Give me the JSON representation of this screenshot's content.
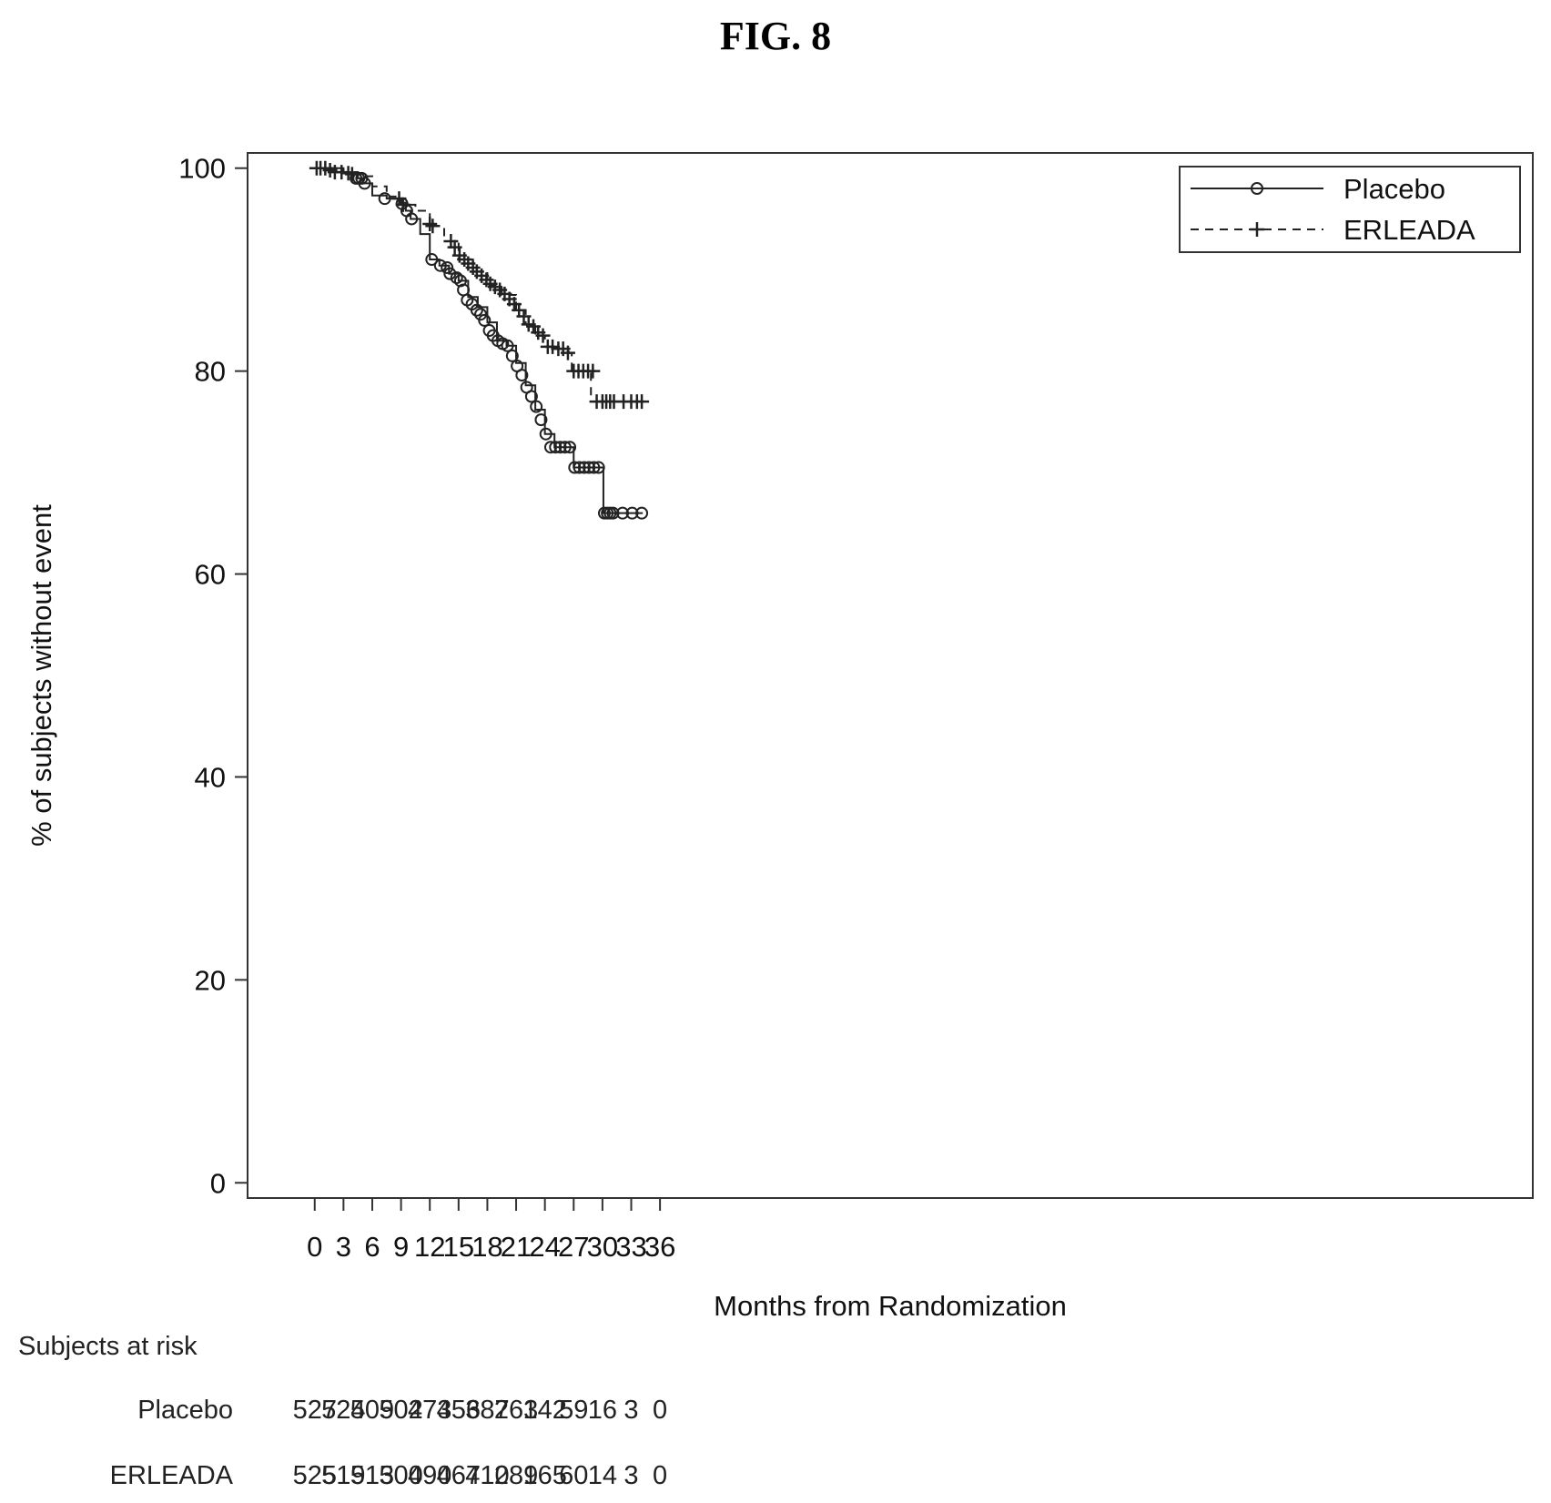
{
  "figure_title": "FIG. 8",
  "chart_data": {
    "type": "line",
    "title": "",
    "xlabel": "Months from Randomization",
    "ylabel": "% of subjects without event",
    "xlim": [
      -7,
      127
    ],
    "ylim": [
      -1.5,
      101.5
    ],
    "xticks": [
      0,
      3,
      6,
      9,
      12,
      15,
      18,
      21,
      24,
      27,
      30,
      33,
      36
    ],
    "yticks": [
      0,
      20,
      40,
      60,
      80,
      100
    ],
    "grid": false,
    "legend_position": "top-right",
    "series": [
      {
        "name": "Placebo",
        "line_style": "solid",
        "marker": "circle",
        "x": [
          0,
          3,
          4.5,
          5,
          6,
          7.5,
          9,
          9.5,
          10,
          11,
          12,
          13,
          14,
          15,
          16,
          17,
          18,
          19,
          20,
          21,
          22,
          23,
          24,
          25,
          26,
          26.7,
          27,
          28,
          29,
          29.8,
          30.1,
          31,
          32,
          33,
          34.2
        ],
        "y": [
          100,
          99.6,
          99,
          98.5,
          97.3,
          97,
          96.6,
          95.8,
          95,
          93.5,
          91,
          90.4,
          89.6,
          88.9,
          87.3,
          86.3,
          84.8,
          83,
          82.5,
          80.8,
          78.6,
          76.2,
          73.8,
          72.5,
          72.5,
          72.5,
          70.5,
          70.5,
          70.5,
          70.5,
          66,
          66,
          66,
          66,
          66
        ],
        "censor_x": [
          4.3,
          4.6,
          4.9,
          5.2,
          7.3,
          9.1,
          9.6,
          10.1,
          12.2,
          13.1,
          13.8,
          14.1,
          14.8,
          15.2,
          15.5,
          15.9,
          16.4,
          16.9,
          17.3,
          17.7,
          18.2,
          18.6,
          19.1,
          19.6,
          20.1,
          20.6,
          21.1,
          21.6,
          22.1,
          22.6,
          23.1,
          23.6,
          24.1,
          24.6,
          25.1,
          25.6,
          26.1,
          26.6,
          27.1,
          27.6,
          28.1,
          28.6,
          29.1,
          29.6,
          30.2,
          30.5,
          30.8,
          31.1,
          32.1,
          33.1,
          34.1
        ],
        "censor_y": [
          99,
          99,
          99,
          98.5,
          97,
          96.5,
          95.8,
          95,
          91,
          90.4,
          90.2,
          89.6,
          89.2,
          88.9,
          88,
          87,
          86.6,
          86,
          85.6,
          85,
          84,
          83.5,
          83,
          82.7,
          82.5,
          81.5,
          80.5,
          79.6,
          78.4,
          77.5,
          76.5,
          75.2,
          73.8,
          72.5,
          72.5,
          72.5,
          72.5,
          72.5,
          70.5,
          70.5,
          70.5,
          70.5,
          70.5,
          70.5,
          66,
          66,
          66,
          66,
          66,
          66,
          66
        ]
      },
      {
        "name": "ERLEADA",
        "line_style": "dashed",
        "marker": "plus",
        "x": [
          0,
          3,
          4.5,
          6,
          7.5,
          9,
          10.5,
          12,
          13.5,
          15,
          16.5,
          18,
          19.5,
          21,
          22,
          23,
          24,
          25,
          26.5,
          26.8,
          28.5,
          28.8,
          30,
          31,
          32,
          33,
          34.2
        ],
        "y": [
          100,
          99.6,
          99.2,
          98.2,
          97.2,
          96.4,
          95.8,
          94.3,
          92.8,
          91,
          89.8,
          88.4,
          87.5,
          86,
          84.6,
          83.5,
          82.4,
          82.2,
          81.8,
          80,
          80,
          77,
          77,
          77,
          77,
          77,
          77
        ],
        "censor_x": [
          0.2,
          0.6,
          1.1,
          1.6,
          2.1,
          2.8,
          3.5,
          3.9,
          8.8,
          9.2,
          12.0,
          12.3,
          14.2,
          14.6,
          15.1,
          15.6,
          16.0,
          16.5,
          16.9,
          17.4,
          17.9,
          18.3,
          18.8,
          19.3,
          19.8,
          20.3,
          20.8,
          21.3,
          21.8,
          22.3,
          22.8,
          23.3,
          23.8,
          24.3,
          24.8,
          25.4,
          25.9,
          26.4,
          27.0,
          27.5,
          28.0,
          28.5,
          29.0,
          29.4,
          30.0,
          30.4,
          30.8,
          31.2,
          32.2,
          33.0,
          33.6,
          34.1
        ],
        "censor_y": [
          100,
          100,
          100,
          99.8,
          99.6,
          99.6,
          99.5,
          99.4,
          97,
          96.4,
          94.5,
          94.3,
          92.8,
          92.2,
          91.4,
          91,
          90.6,
          90.2,
          89.8,
          89.4,
          89,
          88.6,
          88.3,
          88,
          87.6,
          87.1,
          86.6,
          86,
          85.4,
          84.6,
          84.4,
          83.8,
          83.5,
          82.4,
          82.4,
          82.2,
          82.2,
          81.8,
          80,
          80,
          80,
          80,
          80,
          77,
          77,
          77,
          77,
          77,
          77,
          77,
          77,
          77
        ]
      }
    ],
    "risk_table": {
      "header": "Subjects at risk",
      "times": [
        0,
        3,
        6,
        9,
        12,
        15,
        18,
        21,
        24,
        27,
        30,
        33,
        36
      ],
      "rows": [
        {
          "label": "Placebo",
          "values": [
            "527",
            "524",
            "509",
            "502",
            "473",
            "456",
            "387",
            "263",
            "142",
            "59",
            "16",
            "3",
            "0"
          ]
        },
        {
          "label": "ERLEADA",
          "values": [
            "525",
            "519",
            "513",
            "500",
            "490",
            "467",
            "410",
            "289",
            "165",
            "60",
            "14",
            "3",
            "0"
          ]
        }
      ]
    }
  }
}
